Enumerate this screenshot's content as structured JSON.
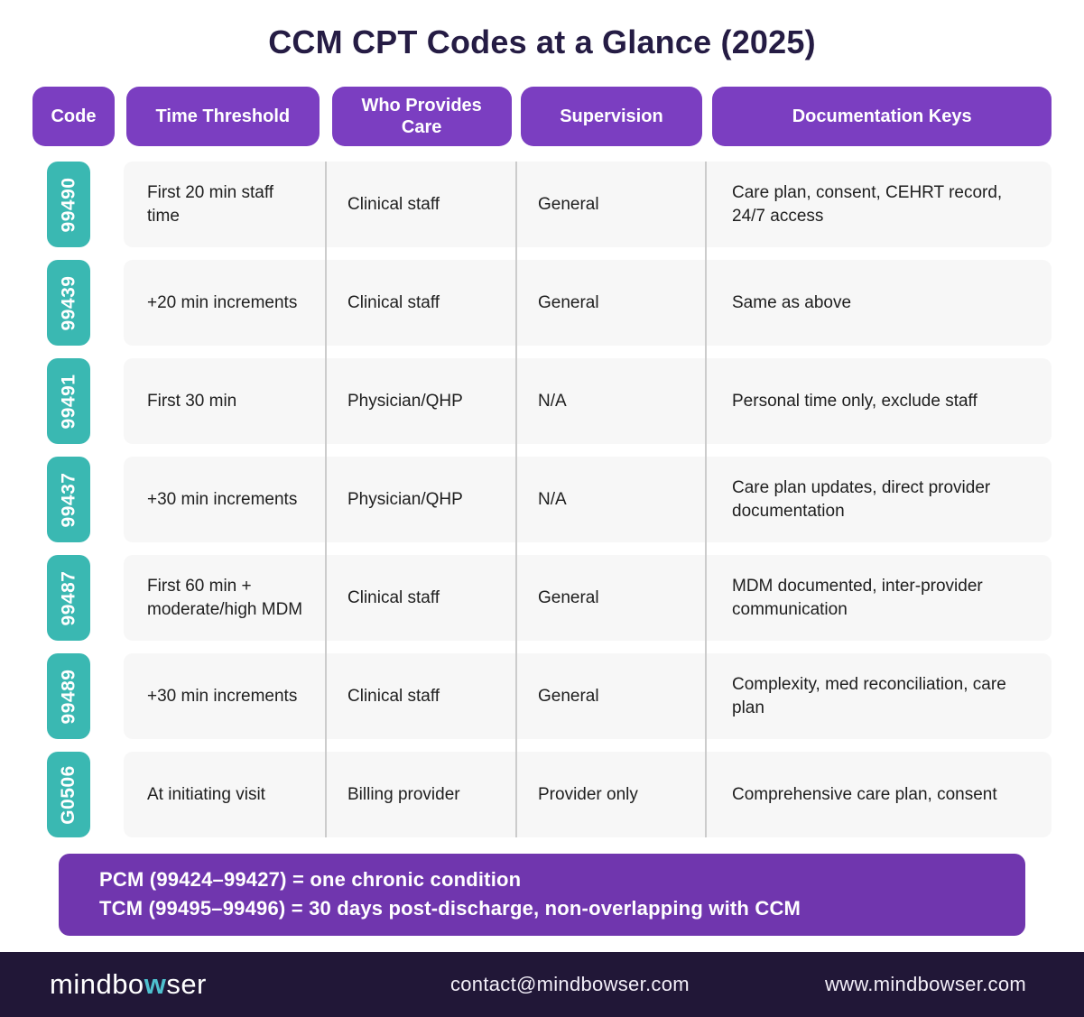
{
  "title": "CCM CPT Codes at a Glance (2025)",
  "colors": {
    "header_purple": "#7B3EC1",
    "note_purple": "#7036AE",
    "badge_teal": "#3AB8B2",
    "logo_teal": "#4EC0CE",
    "footer_bg": "#211737",
    "row_bg": "#F7F7F7",
    "title_color": "#251C44"
  },
  "columns": [
    "Code",
    "Time Threshold",
    "Who Provides Care",
    "Supervision",
    "Documentation Keys"
  ],
  "rows": [
    {
      "code": "99490",
      "time": "First 20 min staff time",
      "provider": "Clinical staff",
      "supervision": "General",
      "documentation": "Care plan, consent, CEHRT record, 24/7 access"
    },
    {
      "code": "99439",
      "time": "+20 min increments",
      "provider": "Clinical staff",
      "supervision": "General",
      "documentation": "Same as above"
    },
    {
      "code": "99491",
      "time": "First 30 min",
      "provider": "Physician/QHP",
      "supervision": "N/A",
      "documentation": "Personal time only, exclude staff"
    },
    {
      "code": "99437",
      "time": "+30 min increments",
      "provider": "Physician/QHP",
      "supervision": "N/A",
      "documentation": "Care plan updates, direct provider documentation"
    },
    {
      "code": "99487",
      "time": "First 60 min + moderate/high MDM",
      "provider": "Clinical staff",
      "supervision": "General",
      "documentation": "MDM documented, inter-provider communication"
    },
    {
      "code": "99489",
      "time": "+30 min increments",
      "provider": "Clinical staff",
      "supervision": "General",
      "documentation": "Complexity, med reconciliation, care plan"
    },
    {
      "code": "G0506",
      "time": "At initiating visit",
      "provider": "Billing provider",
      "supervision": "Provider only",
      "documentation": "Comprehensive care plan, consent"
    }
  ],
  "note": {
    "line1": "PCM (99424–99427) = one chronic condition",
    "line2": "TCM (99495–99496) = 30 days post-discharge, non-overlapping with CCM"
  },
  "footer": {
    "logo_prefix": "mindbo",
    "logo_w": "w",
    "logo_suffix": "ser",
    "email": "contact@mindbowser.com",
    "website": "www.mindbowser.com"
  }
}
